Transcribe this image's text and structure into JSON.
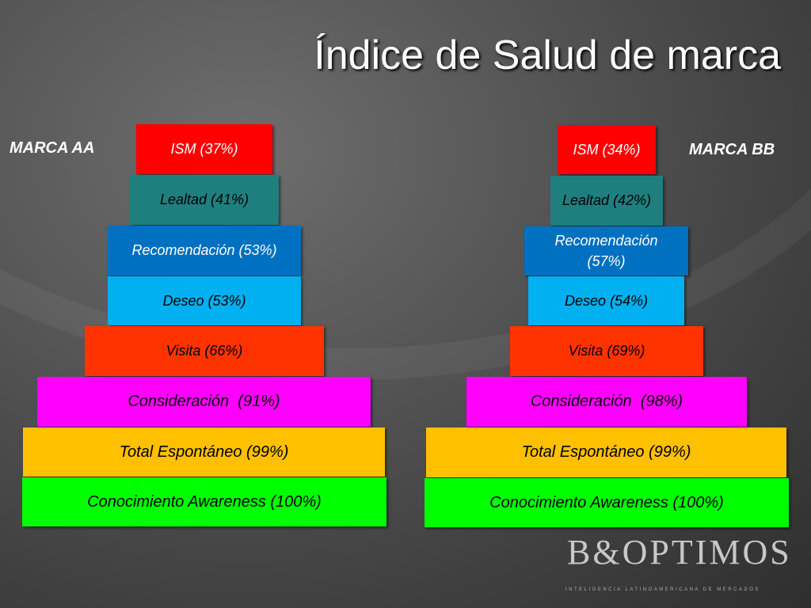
{
  "title": "Índice de Salud de marca",
  "pyramids": [
    {
      "label": "MARCA AA",
      "levels": [
        "ISM (37%)",
        "Lealtad (41%)",
        "Recomendación (53%)",
        "Deseo (53%)",
        "Visita (66%)",
        "Consideración  (91%)",
        "Total Espontáneo (99%)",
        "Conocimiento Awareness (100%)"
      ]
    },
    {
      "label": "MARCA BB",
      "levels": [
        "ISM (34%)",
        "Lealtad (42%)",
        "Recomendación (57%)",
        "Deseo (54%)",
        "Visita (69%)",
        "Consideración  (98%)",
        "Total Espontáneo (99%)",
        "Conocimiento Awareness (100%)"
      ]
    }
  ],
  "logo": {
    "name": "B&OPTIMOS",
    "tagline": "INTELIGENCIA LATINOAMERICANA DE MERCADOS"
  }
}
